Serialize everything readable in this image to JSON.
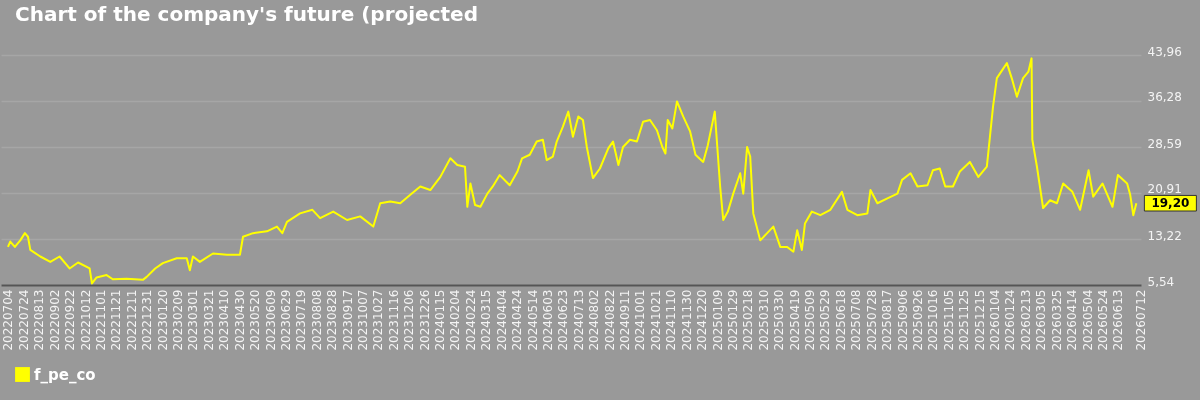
{
  "chart_data": {
    "type": "line",
    "title": "Chart of the company's future (projected",
    "x": [
      "2022-07-04",
      "2022-07-07",
      "2022-07-13",
      "2022-07-20",
      "2022-07-26",
      "2022-07-30",
      "2022-08-02",
      "2022-08-15",
      "2022-08-28",
      "2022-09-09",
      "2022-09-22",
      "2022-10-03",
      "2022-10-18",
      "2022-10-21",
      "2022-10-27",
      "2022-11-09",
      "2022-11-17",
      "2022-12-05",
      "2022-12-26",
      "2022-12-31",
      "2023-01-11",
      "2023-01-21",
      "2023-02-08",
      "2023-02-21",
      "2023-02-25",
      "2023-03-01",
      "2023-03-10",
      "2023-03-27",
      "2023-04-14",
      "2023-05-01",
      "2023-05-05",
      "2023-05-18",
      "2023-06-05",
      "2023-06-18",
      "2023-06-25",
      "2023-07-01",
      "2023-07-18",
      "2023-08-03",
      "2023-08-13",
      "2023-08-30",
      "2023-09-17",
      "2023-10-04",
      "2023-10-21",
      "2023-10-30",
      "2023-11-12",
      "2023-11-25",
      "2023-12-08",
      "2023-12-21",
      "2024-01-03",
      "2024-01-16",
      "2024-01-29",
      "2024-02-07",
      "2024-02-17",
      "2024-02-20",
      "2024-02-24",
      "2024-03-01",
      "2024-03-08",
      "2024-03-17",
      "2024-03-24",
      "2024-04-02",
      "2024-04-15",
      "2024-04-25",
      "2024-05-01",
      "2024-05-11",
      "2024-05-20",
      "2024-05-28",
      "2024-06-02",
      "2024-06-10",
      "2024-06-15",
      "2024-06-23",
      "2024-06-30",
      "2024-07-06",
      "2024-07-13",
      "2024-07-19",
      "2024-07-24",
      "2024-08-01",
      "2024-08-10",
      "2024-08-21",
      "2024-08-27",
      "2024-09-03",
      "2024-09-09",
      "2024-09-18",
      "2024-09-27",
      "2024-10-05",
      "2024-10-14",
      "2024-10-23",
      "2024-10-30",
      "2024-11-03",
      "2024-11-06",
      "2024-11-12",
      "2024-11-18",
      "2024-11-26",
      "2024-12-05",
      "2024-12-12",
      "2024-12-22",
      "2024-12-28",
      "2025-01-06",
      "2025-01-13",
      "2025-01-17",
      "2025-01-23",
      "2025-01-30",
      "2025-02-08",
      "2025-02-12",
      "2025-02-17",
      "2025-02-21",
      "2025-02-25",
      "2025-03-06",
      "2025-03-15",
      "2025-03-23",
      "2025-04-01",
      "2025-04-10",
      "2025-04-18",
      "2025-04-23",
      "2025-04-29",
      "2025-05-03",
      "2025-05-12",
      "2025-05-23",
      "2025-06-05",
      "2025-06-20",
      "2025-06-27",
      "2025-07-10",
      "2025-07-23",
      "2025-07-27",
      "2025-08-05",
      "2025-08-18",
      "2025-08-31",
      "2025-09-06",
      "2025-09-17",
      "2025-09-26",
      "2025-10-09",
      "2025-10-16",
      "2025-10-25",
      "2025-11-01",
      "2025-11-11",
      "2025-11-20",
      "2025-12-03",
      "2025-12-14",
      "2025-12-25",
      "2025-12-29",
      "2026-01-02",
      "2026-01-07",
      "2026-01-20",
      "2026-01-27",
      "2026-02-02",
      "2026-02-10",
      "2026-02-17",
      "2026-02-21",
      "2026-02-22",
      "2026-02-28",
      "2026-03-08",
      "2026-03-17",
      "2026-03-26",
      "2026-04-03",
      "2026-04-15",
      "2026-04-25",
      "2026-05-06",
      "2026-05-12",
      "2026-05-24",
      "2026-06-06",
      "2026-06-13",
      "2026-06-25",
      "2026-06-29",
      "2026-07-03",
      "2026-07-07"
    ],
    "series": [
      {
        "name": "f_pe_co",
        "color": "#ffff00",
        "values": [
          11.9,
          12.8,
          11.9,
          13.0,
          14.2,
          13.6,
          11.4,
          10.3,
          9.4,
          10.3,
          8.3,
          9.3,
          8.3,
          5.8,
          6.8,
          7.2,
          6.5,
          6.6,
          6.4,
          6.9,
          8.3,
          9.2,
          10.0,
          10.0,
          8.0,
          10.3,
          9.4,
          10.8,
          10.6,
          10.6,
          13.6,
          14.2,
          14.5,
          15.3,
          14.2,
          16.1,
          17.5,
          18.1,
          16.7,
          17.8,
          16.4,
          17.0,
          15.3,
          19.2,
          19.5,
          19.2,
          20.6,
          22.0,
          21.4,
          23.6,
          26.7,
          25.6,
          25.3,
          18.6,
          22.5,
          18.9,
          18.6,
          20.8,
          22.0,
          23.9,
          22.2,
          24.5,
          26.7,
          27.3,
          29.5,
          29.8,
          26.4,
          27.0,
          29.5,
          32.0,
          34.5,
          30.3,
          33.7,
          33.1,
          28.6,
          23.4,
          25.0,
          28.4,
          29.5,
          25.6,
          28.6,
          29.8,
          29.5,
          32.8,
          33.1,
          31.4,
          28.6,
          27.5,
          33.1,
          31.7,
          36.2,
          33.7,
          31.2,
          27.3,
          26.1,
          28.9,
          34.5,
          22.0,
          16.4,
          17.8,
          20.8,
          24.2,
          20.8,
          28.6,
          27.0,
          17.5,
          13.0,
          14.2,
          15.3,
          11.9,
          11.9,
          11.1,
          14.7,
          11.4,
          15.8,
          17.8,
          17.2,
          18.1,
          21.1,
          18.1,
          17.2,
          17.5,
          21.4,
          19.2,
          20.0,
          20.8,
          23.1,
          24.2,
          22.0,
          22.2,
          24.7,
          25.0,
          22.0,
          22.0,
          24.5,
          26.1,
          23.6,
          25.3,
          30.3,
          35.3,
          40.1,
          42.6,
          39.8,
          37.0,
          40.1,
          41.2,
          43.4,
          29.8,
          25.3,
          18.4,
          19.7,
          19.2,
          22.5,
          21.1,
          18.1,
          24.7,
          20.3,
          22.5,
          18.6,
          23.9,
          22.5,
          20.6,
          17.2,
          19.2
        ]
      }
    ],
    "xlim": [
      "2022-06-25",
      "2026-07-13"
    ],
    "xticks": [
      {
        "value": "2022-07-04",
        "label": "20220704"
      },
      {
        "value": "2022-07-24",
        "label": "20220724"
      },
      {
        "value": "2022-08-13",
        "label": "20220813"
      },
      {
        "value": "2022-09-02",
        "label": "20220902"
      },
      {
        "value": "2022-09-22",
        "label": "20220922"
      },
      {
        "value": "2022-10-12",
        "label": "20221012"
      },
      {
        "value": "2022-11-01",
        "label": "20221101"
      },
      {
        "value": "2022-11-21",
        "label": "20221121"
      },
      {
        "value": "2022-12-11",
        "label": "20221211"
      },
      {
        "value": "2022-12-31",
        "label": "20221231"
      },
      {
        "value": "2023-01-20",
        "label": "20230120"
      },
      {
        "value": "2023-02-09",
        "label": "20230209"
      },
      {
        "value": "2023-03-01",
        "label": "20230301"
      },
      {
        "value": "2023-03-21",
        "label": "20230321"
      },
      {
        "value": "2023-04-10",
        "label": "20230410"
      },
      {
        "value": "2023-04-30",
        "label": "20230430"
      },
      {
        "value": "2023-05-20",
        "label": "20230520"
      },
      {
        "value": "2023-06-09",
        "label": "20230609"
      },
      {
        "value": "2023-06-29",
        "label": "20230629"
      },
      {
        "value": "2023-07-19",
        "label": "20230719"
      },
      {
        "value": "2023-08-08",
        "label": "20230808"
      },
      {
        "value": "2023-08-28",
        "label": "20230828"
      },
      {
        "value": "2023-09-17",
        "label": "20230917"
      },
      {
        "value": "2023-10-07",
        "label": "20231007"
      },
      {
        "value": "2023-10-27",
        "label": "20231027"
      },
      {
        "value": "2023-11-16",
        "label": "20231116"
      },
      {
        "value": "2023-12-06",
        "label": "20231206"
      },
      {
        "value": "2023-12-26",
        "label": "20231226"
      },
      {
        "value": "2024-01-15",
        "label": "20240115"
      },
      {
        "value": "2024-02-04",
        "label": "20240204"
      },
      {
        "value": "2024-02-24",
        "label": "20240224"
      },
      {
        "value": "2024-03-15",
        "label": "20240315"
      },
      {
        "value": "2024-04-04",
        "label": "20240404"
      },
      {
        "value": "2024-04-24",
        "label": "20240424"
      },
      {
        "value": "2024-05-14",
        "label": "20240514"
      },
      {
        "value": "2024-06-03",
        "label": "20240603"
      },
      {
        "value": "2024-06-23",
        "label": "20240623"
      },
      {
        "value": "2024-07-13",
        "label": "20240713"
      },
      {
        "value": "2024-08-02",
        "label": "20240802"
      },
      {
        "value": "2024-08-22",
        "label": "20240822"
      },
      {
        "value": "2024-09-11",
        "label": "20240911"
      },
      {
        "value": "2024-10-01",
        "label": "20241001"
      },
      {
        "value": "2024-10-21",
        "label": "20241021"
      },
      {
        "value": "2024-11-10",
        "label": "20241110"
      },
      {
        "value": "2024-11-30",
        "label": "20241130"
      },
      {
        "value": "2024-12-20",
        "label": "20241220"
      },
      {
        "value": "2025-01-09",
        "label": "20250109"
      },
      {
        "value": "2025-01-29",
        "label": "20250129"
      },
      {
        "value": "2025-02-18",
        "label": "20250218"
      },
      {
        "value": "2025-03-10",
        "label": "20250310"
      },
      {
        "value": "2025-03-30",
        "label": "20250330"
      },
      {
        "value": "2025-04-19",
        "label": "20250419"
      },
      {
        "value": "2025-05-09",
        "label": "20250509"
      },
      {
        "value": "2025-05-29",
        "label": "20250529"
      },
      {
        "value": "2025-06-18",
        "label": "20250618"
      },
      {
        "value": "2025-07-08",
        "label": "20250708"
      },
      {
        "value": "2025-07-28",
        "label": "20250728"
      },
      {
        "value": "2025-08-17",
        "label": "20250817"
      },
      {
        "value": "2025-09-06",
        "label": "20250906"
      },
      {
        "value": "2025-09-26",
        "label": "20250926"
      },
      {
        "value": "2025-10-16",
        "label": "20251016"
      },
      {
        "value": "2025-11-05",
        "label": "20251105"
      },
      {
        "value": "2025-11-25",
        "label": "20251125"
      },
      {
        "value": "2025-12-15",
        "label": "20251215"
      },
      {
        "value": "2026-01-04",
        "label": "20260104"
      },
      {
        "value": "2026-01-24",
        "label": "20260124"
      },
      {
        "value": "2026-02-13",
        "label": "20260213"
      },
      {
        "value": "2026-03-05",
        "label": "20260305"
      },
      {
        "value": "2026-03-25",
        "label": "20260325"
      },
      {
        "value": "2026-04-14",
        "label": "20260414"
      },
      {
        "value": "2026-05-04",
        "label": "20260504"
      },
      {
        "value": "2026-05-24",
        "label": "20260524"
      },
      {
        "value": "2026-06-13",
        "label": "20260613"
      },
      {
        "value": "2026-07-12",
        "label": "20260712"
      }
    ],
    "ylim": [
      5.54,
      43.96
    ],
    "yticks": [
      {
        "value": 5.54,
        "label": "5,54"
      },
      {
        "value": 13.22,
        "label": "13,22"
      },
      {
        "value": 20.91,
        "label": "20,91"
      },
      {
        "value": 28.59,
        "label": "28,59"
      },
      {
        "value": 36.28,
        "label": "36,28"
      },
      {
        "value": 43.96,
        "label": "43,96"
      }
    ],
    "grid": "y",
    "legend": "bottom left",
    "annotations": [
      {
        "text": "19,20",
        "x": "2026-07-07",
        "y": 19.2
      }
    ]
  }
}
